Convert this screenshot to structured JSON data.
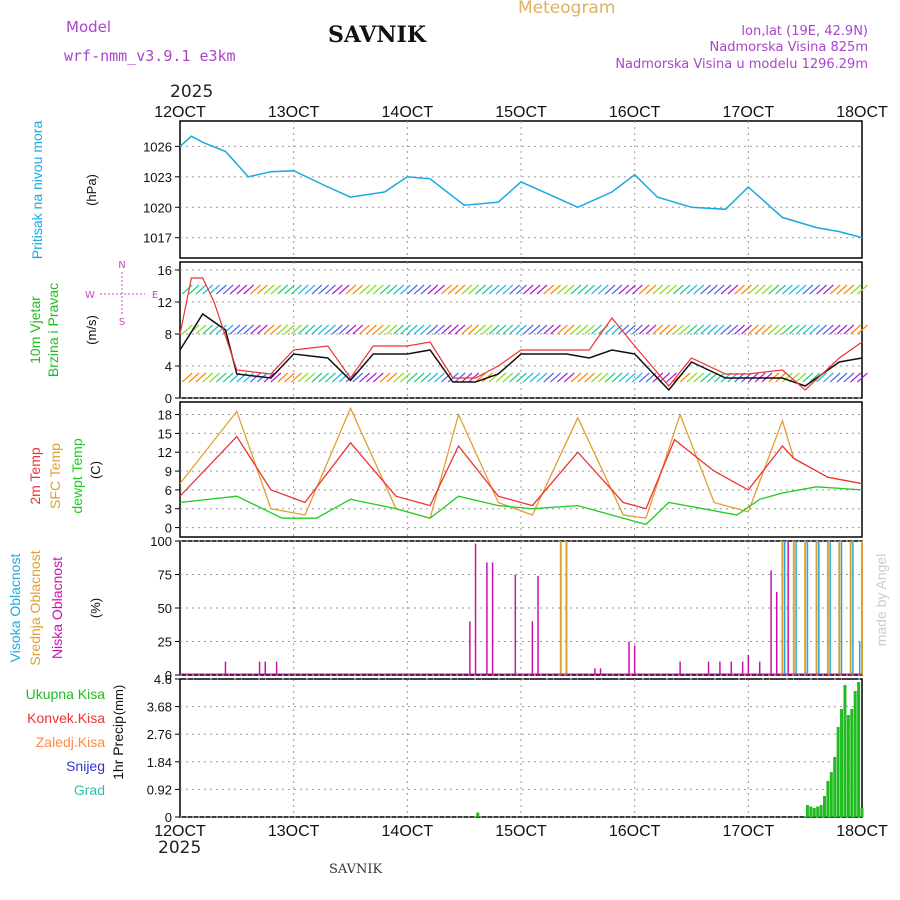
{
  "header": {
    "title": "SAVNIK",
    "subtitle": "Meteogram",
    "model_label": "Model",
    "model_name": "wrf-nmm_v3.9.1 e3km",
    "lonlat": "lon,lat (19E, 42.9N)",
    "elevation": "Nadmorska Visina 825m",
    "model_elevation": "Nadmorska Visina u modelu 1296.29m",
    "footer_title": "SAVNIK",
    "credit": "made by Angel",
    "year": "2025"
  },
  "colors": {
    "pressure": "#1aa7e6",
    "temp2m": "#ee3333",
    "sfc": "#e0a030",
    "dewpt": "#22cc22",
    "high_cloud": "#22aadd",
    "mid_cloud": "#e0a030",
    "low_cloud": "#cc11aa",
    "total_precip": "#22bb22",
    "wind_speed": "#111111",
    "gust": "#ee3333",
    "compass": "#cc44cc"
  },
  "chart_data": [
    {
      "type": "line",
      "id": "pressure",
      "ylabel_name": "Pritisak na nivou mora",
      "ylabel_unit": "(hPa)",
      "ylim": [
        1015,
        1028.5
      ],
      "yticks": [
        "1017",
        "1020",
        "1023",
        "1026"
      ],
      "x_day": [
        12.0,
        12.1,
        12.2,
        12.4,
        12.6,
        12.8,
        13.0,
        13.3,
        13.5,
        13.8,
        14.0,
        14.2,
        14.5,
        14.8,
        15.0,
        15.3,
        15.5,
        15.8,
        16.0,
        16.2,
        16.5,
        16.8,
        17.0,
        17.3,
        17.6,
        17.8,
        18.0
      ],
      "values": [
        1026,
        1027,
        1026.4,
        1025.5,
        1023,
        1023.5,
        1023.6,
        1022,
        1021,
        1021.5,
        1023,
        1022.8,
        1020.2,
        1020.5,
        1022.5,
        1021,
        1020,
        1021.5,
        1023.2,
        1021,
        1020,
        1019.8,
        1022,
        1019,
        1018,
        1017.6,
        1017
      ],
      "series_name": "Pritisak na nivou mora"
    },
    {
      "type": "line",
      "id": "wind",
      "ylabel_name": "10m Vjetar",
      "ylabel_sub": "Brzina i Pravac",
      "ylabel_unit": "(m/s)",
      "ylim": [
        0,
        17
      ],
      "yticks": [
        "0",
        "4",
        "8",
        "12",
        "16"
      ],
      "compass": [
        "N",
        "E",
        "S",
        "W"
      ],
      "series": [
        {
          "name": "Brzina vjetra",
          "x_day": [
            12.0,
            12.2,
            12.4,
            12.5,
            12.8,
            13.0,
            13.3,
            13.5,
            13.7,
            14.0,
            14.2,
            14.4,
            14.6,
            14.8,
            15.0,
            15.4,
            15.6,
            15.8,
            16.0,
            16.3,
            16.5,
            16.8,
            17.0,
            17.3,
            17.5,
            17.8,
            18.0
          ],
          "values": [
            6,
            10.5,
            8.5,
            3,
            2.5,
            5.5,
            5,
            2.2,
            5.5,
            5.5,
            6,
            2,
            2,
            3,
            5.5,
            5.5,
            5,
            6,
            5.5,
            1,
            4.5,
            2.5,
            2.5,
            2.5,
            1.5,
            4.5,
            5
          ]
        },
        {
          "name": "Udari vjetra",
          "x_day": [
            12.0,
            12.1,
            12.2,
            12.3,
            12.5,
            12.8,
            13.0,
            13.3,
            13.5,
            13.7,
            14.0,
            14.2,
            14.4,
            14.6,
            14.8,
            15.0,
            15.4,
            15.6,
            15.8,
            16.0,
            16.3,
            16.5,
            16.8,
            17.0,
            17.3,
            17.5,
            17.8,
            18.0
          ],
          "values": [
            8,
            15,
            15,
            12,
            3.5,
            3,
            6,
            6.5,
            2.5,
            6.5,
            6.5,
            7,
            2.5,
            2.5,
            4,
            6,
            6,
            6,
            10,
            6.5,
            1.5,
            5,
            3,
            3,
            3.5,
            1,
            5,
            7
          ]
        }
      ]
    },
    {
      "type": "line",
      "id": "temperature",
      "ylabel_names": [
        "2m Temp",
        "SFC Temp",
        "dewpt Temp"
      ],
      "ylabel_unit": "(C)",
      "ylim": [
        -1.5,
        20
      ],
      "yticks": [
        "0",
        "3",
        "6",
        "9",
        "12",
        "15",
        "18"
      ],
      "series": [
        {
          "name": "2m Temp",
          "x_day": [
            12.0,
            12.5,
            12.8,
            13.1,
            13.5,
            13.9,
            14.2,
            14.45,
            14.8,
            15.1,
            15.5,
            15.9,
            16.1,
            16.35,
            16.7,
            17.0,
            17.3,
            17.4,
            17.7,
            18.0
          ],
          "values": [
            5,
            14.5,
            6,
            4,
            13.5,
            5,
            3.5,
            13,
            5,
            3.5,
            12,
            4,
            3,
            14,
            9,
            6,
            13,
            11,
            8,
            7
          ]
        },
        {
          "name": "SFC Temp",
          "x_day": [
            12.0,
            12.5,
            12.8,
            13.1,
            13.5,
            13.9,
            14.2,
            14.45,
            14.8,
            15.1,
            15.5,
            15.9,
            16.1,
            16.4,
            16.7,
            17.0,
            17.3,
            17.4,
            17.7,
            18.0
          ],
          "values": [
            7,
            18.5,
            3,
            2,
            19,
            3,
            1.5,
            18,
            4,
            2,
            17.5,
            2,
            1.5,
            18,
            4,
            2.5,
            17,
            11,
            8,
            7
          ]
        },
        {
          "name": "dewpt Temp",
          "x_day": [
            12.0,
            12.5,
            12.9,
            13.2,
            13.5,
            13.9,
            14.2,
            14.45,
            14.8,
            15.1,
            15.5,
            15.9,
            16.1,
            16.3,
            16.6,
            16.9,
            17.1,
            17.3,
            17.6,
            18.0
          ],
          "values": [
            4,
            5,
            1.5,
            1.5,
            4.5,
            3,
            1.5,
            5,
            3.5,
            3,
            3.5,
            1.5,
            0.5,
            4,
            3,
            2,
            4.5,
            5.5,
            6.5,
            6
          ]
        }
      ]
    },
    {
      "type": "bar",
      "id": "cloud",
      "ylabel_names": [
        "Visoka Oblacnost",
        "Srednja Oblacnost",
        "Niska Oblacnost"
      ],
      "ylabel_unit": "(%)",
      "ylim": [
        0,
        100
      ],
      "yticks": [
        "0",
        "25",
        "50",
        "75",
        "100"
      ],
      "series": [
        {
          "name": "Niska Oblacnost",
          "x_day": [
            12.4,
            12.7,
            12.75,
            12.85,
            14.55,
            14.6,
            14.7,
            14.75,
            14.95,
            15.1,
            15.15,
            15.65,
            15.7,
            15.95,
            16.0,
            16.4,
            16.65,
            16.75,
            16.85,
            16.95,
            17.0,
            17.1,
            17.2,
            17.25,
            17.3,
            17.35
          ],
          "values": [
            10,
            10,
            10,
            10,
            40,
            98,
            84,
            84,
            75,
            40,
            74,
            5,
            5,
            25,
            22,
            10,
            10,
            10,
            10,
            10,
            15,
            10,
            78,
            62,
            100,
            100
          ]
        },
        {
          "name": "Srednja Oblacnost",
          "x_day": [
            15.35,
            15.4,
            17.3,
            17.4,
            17.5,
            17.6,
            17.7,
            17.8,
            17.9,
            18.0
          ],
          "values": [
            100,
            100,
            100,
            100,
            100,
            100,
            100,
            100,
            100,
            100
          ]
        },
        {
          "name": "Visoka Oblacnost",
          "x_day": [
            17.32,
            17.42,
            17.52,
            17.62,
            17.72,
            17.82,
            17.92,
            17.98
          ],
          "values": [
            100,
            100,
            100,
            100,
            100,
            100,
            100,
            25
          ]
        }
      ]
    },
    {
      "type": "bar",
      "id": "precip",
      "ylabel_name": "1hr Precip",
      "ylabel_unit": "(mm)",
      "legend": [
        "Ukupna Kisa",
        "Konvek.Kisa",
        "Zaledj.Kisa",
        "Snijeg",
        "Grad"
      ],
      "legend_colors": [
        "#22bb22",
        "#ee3333",
        "#ff8844",
        "#3333cc",
        "#33bbaa"
      ],
      "ylim": [
        0,
        4.6
      ],
      "yticks": [
        "0",
        "0.92",
        "1.84",
        "2.76",
        "3.68",
        "4.6"
      ],
      "x_day": [
        14.62,
        17.52,
        17.55,
        17.58,
        17.61,
        17.64,
        17.67,
        17.7,
        17.73,
        17.76,
        17.79,
        17.82,
        17.85,
        17.88,
        17.91,
        17.94,
        17.97,
        18.0
      ],
      "values": [
        0.15,
        0.4,
        0.35,
        0.3,
        0.35,
        0.4,
        0.7,
        1.2,
        1.5,
        2.0,
        3.0,
        3.6,
        4.4,
        3.4,
        3.6,
        4.2,
        4.5,
        0.3
      ]
    }
  ],
  "x_axis": {
    "labels": [
      "12OCT",
      "13OCT",
      "14OCT",
      "15OCT",
      "16OCT",
      "17OCT",
      "18OCT"
    ],
    "day_values": [
      12,
      13,
      14,
      15,
      16,
      17,
      18
    ]
  }
}
